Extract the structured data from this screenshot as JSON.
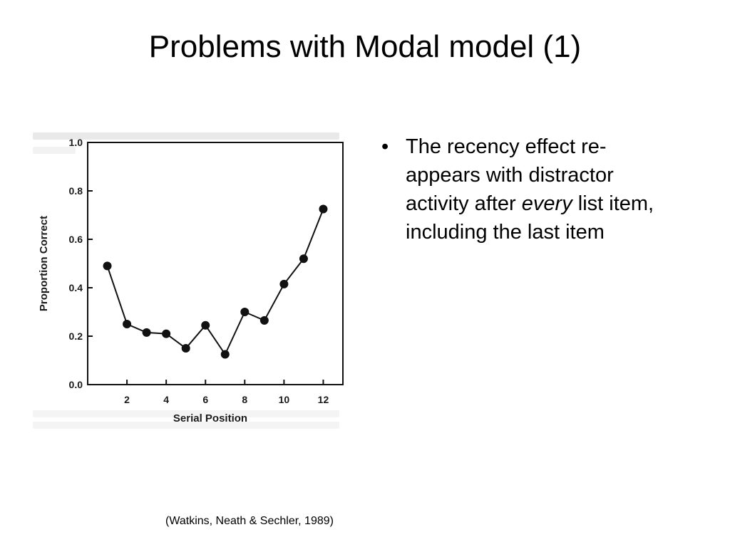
{
  "slide": {
    "title": "Problems with Modal model (1)",
    "bullet_marker": "•",
    "bullet": {
      "before": "The recency effect re-appears with distractor activity after ",
      "emphasis": "every",
      "after": " list item, including the last item"
    },
    "citation": "(Watkins, Neath & Sechler, 1989)"
  },
  "chart_data": {
    "type": "line",
    "xlabel": "Serial Position",
    "ylabel": "Proportion Correct",
    "x": [
      1,
      2,
      3,
      4,
      5,
      6,
      7,
      8,
      9,
      10,
      11,
      12
    ],
    "series": [
      {
        "values": [
          0.49,
          0.25,
          0.215,
          0.21,
          0.15,
          0.245,
          0.125,
          0.3,
          0.265,
          0.415,
          0.52,
          0.725
        ]
      }
    ],
    "xlim": [
      0,
      13
    ],
    "ylim": [
      0,
      1.0
    ],
    "xticks": [
      2,
      4,
      6,
      8,
      10,
      12
    ],
    "xtick_labels": [
      "2",
      "4",
      "6",
      "8",
      "10",
      "12"
    ],
    "yticks": [
      0.0,
      0.2,
      0.4,
      0.6,
      0.8,
      1.0
    ],
    "ytick_labels": [
      "0.0",
      "0.2",
      "0.4",
      "0.6",
      "0.8",
      "1.0"
    ],
    "grid": false,
    "legend": "none",
    "marker": "filled-circle",
    "line_color": "#111111"
  }
}
